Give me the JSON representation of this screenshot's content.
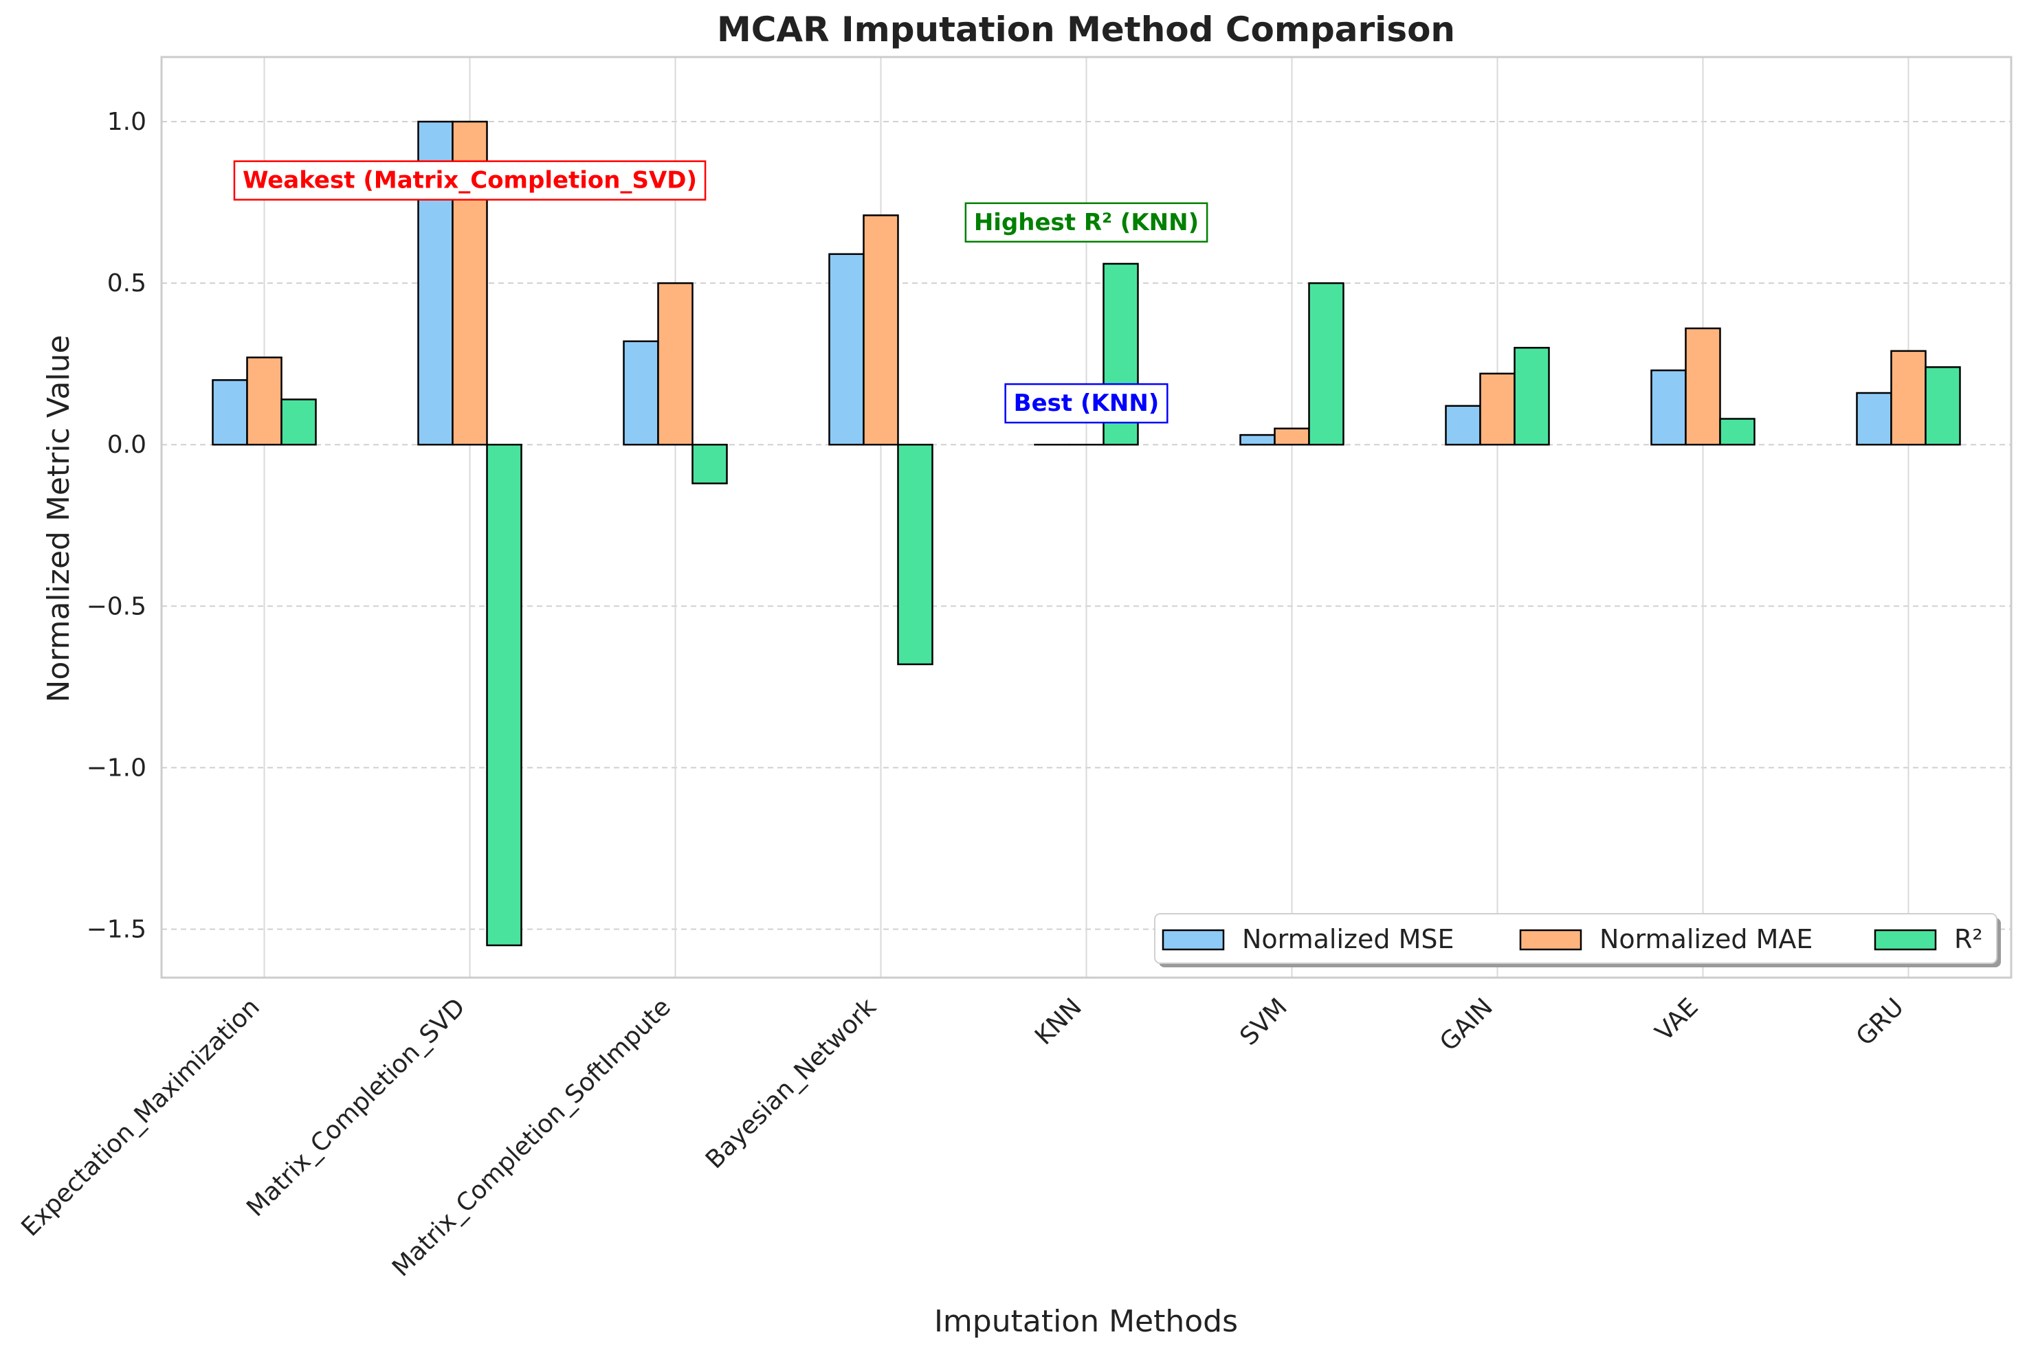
{
  "chart_data": {
    "type": "bar",
    "title": "MCAR Imputation Method Comparison",
    "xlabel": "Imputation Methods",
    "ylabel": "Normalized Metric Value",
    "ylim": [
      -1.65,
      1.2
    ],
    "yticks": [
      -1.5,
      -1.0,
      -0.5,
      0.0,
      0.5,
      1.0
    ],
    "ytick_labels": [
      "−1.5",
      "−1.0",
      "−0.5",
      "0.0",
      "0.5",
      "1.0"
    ],
    "grid": true,
    "legend_position": "bottom-right",
    "categories": [
      "Expectation_Maximization",
      "Matrix_Completion_SVD",
      "Matrix_Completion_SoftImpute",
      "Bayesian_Network",
      "KNN",
      "SVM",
      "GAIN",
      "VAE",
      "GRU"
    ],
    "series": [
      {
        "name": "Normalized MSE",
        "color": "#8ecaf6",
        "values": [
          0.2,
          1.0,
          0.32,
          0.59,
          0.0,
          0.03,
          0.12,
          0.23,
          0.16
        ]
      },
      {
        "name": "Normalized MAE",
        "color": "#ffb47e",
        "values": [
          0.27,
          1.0,
          0.5,
          0.71,
          0.0,
          0.05,
          0.22,
          0.36,
          0.29
        ]
      },
      {
        "name": "R²",
        "color": "#4ae39e",
        "values": [
          0.14,
          -1.55,
          -0.12,
          -0.68,
          0.56,
          0.5,
          0.3,
          0.08,
          0.24
        ]
      }
    ],
    "annotations": [
      {
        "text": "Weakest (Matrix_Completion_SVD)",
        "category_index": 1,
        "y": 0.82,
        "color": "#ff0000"
      },
      {
        "text": "Highest R² (KNN)",
        "category_index": 4,
        "y": 0.69,
        "color": "#008000"
      },
      {
        "text": "Best (KNN)",
        "category_index": 4,
        "y": 0.13,
        "color": "#0000ff"
      }
    ]
  }
}
